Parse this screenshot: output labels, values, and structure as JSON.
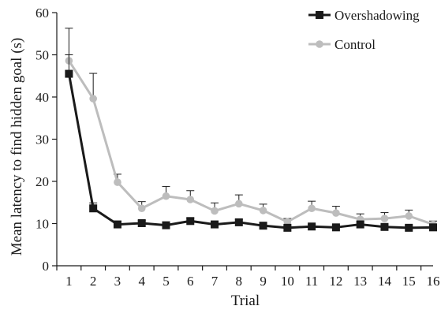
{
  "chart_data": {
    "type": "line",
    "title": "",
    "xlabel": "Trial",
    "ylabel": "Mean latency to find hidden goal (s)",
    "x": [
      1,
      2,
      3,
      4,
      5,
      6,
      7,
      8,
      9,
      10,
      11,
      12,
      13,
      14,
      15,
      16
    ],
    "xlim": [
      0.5,
      16
    ],
    "ylim": [
      0,
      60
    ],
    "yticks": [
      0,
      10,
      20,
      30,
      40,
      50,
      60
    ],
    "grid": false,
    "legend_position": "top-right",
    "series": [
      {
        "name": "Overshadowing",
        "color": "#1a1a1a",
        "marker": "square",
        "values": [
          45.5,
          13.6,
          9.8,
          10.1,
          9.6,
          10.6,
          9.8,
          10.3,
          9.5,
          9.0,
          9.3,
          9.1,
          9.8,
          9.2,
          9.0,
          9.1
        ],
        "error": [
          4.5,
          1.3,
          0.6,
          0.6,
          0.5,
          0.7,
          0.6,
          0.7,
          0.6,
          0.5,
          0.5,
          0.5,
          0.6,
          0.5,
          0.5,
          0.5
        ]
      },
      {
        "name": "Control",
        "color": "#bdbdbd",
        "marker": "circle",
        "values": [
          48.6,
          39.6,
          19.8,
          13.6,
          16.5,
          15.7,
          13.0,
          14.7,
          13.1,
          10.4,
          13.6,
          12.5,
          11.0,
          11.2,
          11.8,
          9.8
        ],
        "error": [
          7.7,
          6.0,
          1.9,
          1.6,
          2.3,
          2.1,
          1.9,
          2.1,
          1.5,
          0.8,
          1.7,
          1.6,
          1.3,
          1.4,
          1.4,
          0.8
        ]
      }
    ]
  }
}
